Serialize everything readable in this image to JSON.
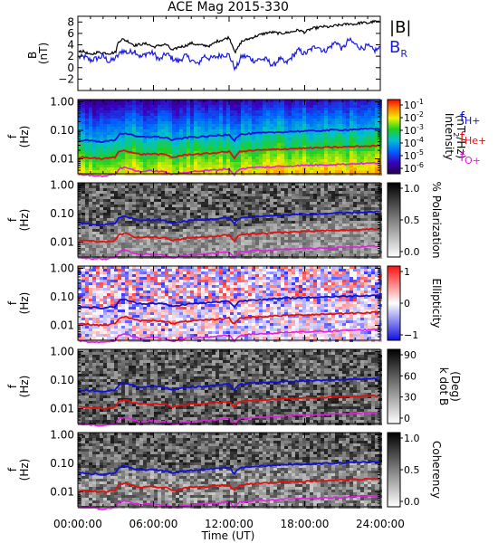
{
  "title": "ACE Mag 2015-330",
  "legend": {
    "b_label": "|B|",
    "br_label": "B",
    "br_sub": "R",
    "fh_label": "f",
    "fh_sub": "H+",
    "fhe_label": "f",
    "fhe_sub": "He+",
    "fo_label": "f",
    "fo_sub": "O+"
  },
  "x_axis": {
    "label": "Time (UT)",
    "ticks": [
      "00:00:00",
      "06:00:00",
      "12:00:00",
      "18:00:00",
      "24:00:00"
    ],
    "tick_hours": [
      0,
      6,
      12,
      18,
      24
    ]
  },
  "colors": {
    "b_total": "#000000",
    "b_r": "#1c1ce0",
    "f_h": "#1010d8",
    "f_he": "#e01010",
    "f_o": "#e020e0"
  },
  "chart_data": [
    {
      "type": "line",
      "panel": "magnetic_field",
      "ylabel_top": "B",
      "ylabel_bottom": "(nT)",
      "ylim": [
        -4,
        9
      ],
      "yticks": [
        "8",
        "6",
        "4",
        "2",
        "0",
        "−2"
      ],
      "ytick_values": [
        8,
        6,
        4,
        2,
        0,
        -2
      ],
      "x": [
        0,
        0.5,
        1,
        1.5,
        2,
        2.5,
        3,
        3.2,
        3.5,
        4,
        4.5,
        5,
        5.5,
        6,
        6.5,
        7,
        7.5,
        8,
        8.5,
        9,
        9.5,
        10,
        10.5,
        11,
        11.5,
        12,
        12.5,
        13,
        13.5,
        14,
        14.5,
        15,
        15.5,
        16,
        16.5,
        17,
        17.5,
        18,
        18.5,
        19,
        19.5,
        20,
        20.5,
        21,
        21.5,
        22,
        22.5,
        23,
        23.5,
        24
      ],
      "series": [
        {
          "name": "|B|",
          "values": [
            3.0,
            2.8,
            2.2,
            2.7,
            2.6,
            2.5,
            2.7,
            4.5,
            5.0,
            4.6,
            3.9,
            4.1,
            4.2,
            3.6,
            3.9,
            4.1,
            3.0,
            3.6,
            3.8,
            4.3,
            4.0,
            3.9,
            3.8,
            4.6,
            4.9,
            5.3,
            2.7,
            4.6,
            5.0,
            5.4,
            5.8,
            6.1,
            6.2,
            6.0,
            6.1,
            6.3,
            6.6,
            6.2,
            6.8,
            7.0,
            7.2,
            7.1,
            7.4,
            7.5,
            7.7,
            7.6,
            7.9,
            7.8,
            8.1,
            8.0
          ]
        },
        {
          "name": "B",
          "values": [
            1.8,
            1.9,
            1.3,
            1.6,
            2.0,
            1.0,
            1.7,
            2.1,
            3.0,
            2.6,
            3.0,
            1.8,
            2.6,
            2.5,
            1.3,
            2.5,
            1.6,
            1.1,
            2.1,
            1.4,
            0.5,
            2.1,
            1.6,
            1.9,
            2.3,
            2.2,
            -0.3,
            2.0,
            1.9,
            1.2,
            1.5,
            1.4,
            0.3,
            1.6,
            0.7,
            1.9,
            3.1,
            2.4,
            3.2,
            3.9,
            2.8,
            3.6,
            4.6,
            3.2,
            4.9,
            4.1,
            3.4,
            3.8,
            3.0,
            3.4
          ]
        }
      ]
    },
    {
      "type": "heatmap",
      "panel": "power_spectral_density",
      "ylabel_top": "f",
      "ylabel_bottom": "(Hz)",
      "yscale": "log",
      "ylim": [
        0.003,
        1.2
      ],
      "yticks": [
        "1.00",
        "0.10",
        "0.01"
      ],
      "ytick_values": [
        1.0,
        0.1,
        0.01
      ],
      "colorbar_label": "Intensity",
      "colorbar_unit_pre": "(nT",
      "colorbar_unit_sup": "2",
      "colorbar_unit_post": "/Hz)",
      "colorbar_ticks": [
        "10",
        "10",
        "10",
        "10",
        "10",
        "10"
      ],
      "colorbar_exponents": [
        "-1",
        "-2",
        "-3",
        "-4",
        "-5",
        "-6"
      ],
      "colormap": "rainbow"
    },
    {
      "type": "heatmap",
      "panel": "polarization",
      "ylabel_top": "f",
      "ylabel_bottom": "(Hz)",
      "yscale": "log",
      "ylim": [
        0.003,
        1.2
      ],
      "yticks": [
        "1.00",
        "0.10",
        "0.01"
      ],
      "ytick_values": [
        1.0,
        0.1,
        0.01
      ],
      "colorbar_label": "% Polarization",
      "colorbar_ticks": [
        "1.0",
        "0.5",
        "0.0"
      ],
      "colormap": "gray"
    },
    {
      "type": "heatmap",
      "panel": "ellipticity",
      "ylabel_top": "f",
      "ylabel_bottom": "(Hz)",
      "yscale": "log",
      "ylim": [
        0.003,
        1.2
      ],
      "yticks": [
        "1.00",
        "0.10",
        "0.01"
      ],
      "ytick_values": [
        1.0,
        0.1,
        0.01
      ],
      "colorbar_label": "Ellipticity",
      "colorbar_ticks": [
        "1",
        "0",
        "−1"
      ],
      "colormap": "blue-white-red"
    },
    {
      "type": "heatmap",
      "panel": "wave_normal_angle",
      "ylabel_top": "f",
      "ylabel_bottom": "(Hz)",
      "yscale": "log",
      "ylim": [
        0.003,
        1.2
      ],
      "yticks": [
        "1.00",
        "0.10",
        "0.01"
      ],
      "ytick_values": [
        1.0,
        0.1,
        0.01
      ],
      "colorbar_label": "k dot B",
      "colorbar_label2": "(Deg)",
      "colorbar_ticks": [
        "90",
        "60",
        "30",
        "0"
      ],
      "colormap": "gray"
    },
    {
      "type": "heatmap",
      "panel": "coherency",
      "ylabel_top": "f",
      "ylabel_bottom": "(Hz)",
      "yscale": "log",
      "ylim": [
        0.003,
        1.2
      ],
      "yticks": [
        "1.00",
        "0.10",
        "0.01"
      ],
      "ytick_values": [
        1.0,
        0.1,
        0.01
      ],
      "colorbar_label": "Coherency",
      "colorbar_ticks": [
        "1.0",
        "0.5",
        "0.0"
      ],
      "colormap": "gray"
    }
  ],
  "gyrofrequencies": {
    "x": [
      0,
      1,
      2,
      3,
      3.3,
      3.8,
      4.5,
      5,
      6,
      7,
      7.5,
      8,
      9,
      10,
      11,
      12,
      12.4,
      12.8,
      13.5,
      14,
      15,
      16,
      17,
      18,
      19,
      20,
      21,
      22,
      23,
      24
    ],
    "f_h": [
      0.046,
      0.043,
      0.04,
      0.046,
      0.075,
      0.08,
      0.062,
      0.058,
      0.06,
      0.055,
      0.045,
      0.05,
      0.058,
      0.06,
      0.065,
      0.072,
      0.042,
      0.07,
      0.075,
      0.079,
      0.082,
      0.087,
      0.091,
      0.094,
      0.097,
      0.101,
      0.104,
      0.108,
      0.112,
      0.115
    ],
    "f_he": [
      0.0115,
      0.0108,
      0.01,
      0.0115,
      0.0188,
      0.02,
      0.0155,
      0.0145,
      0.015,
      0.0138,
      0.0112,
      0.0125,
      0.0145,
      0.015,
      0.0163,
      0.018,
      0.0105,
      0.0175,
      0.0188,
      0.0198,
      0.0205,
      0.0218,
      0.0228,
      0.0235,
      0.0243,
      0.0253,
      0.026,
      0.027,
      0.028,
      0.0288
    ],
    "f_o": [
      0.0029,
      0.0027,
      0.0025,
      0.0029,
      0.0047,
      0.005,
      0.0039,
      0.0036,
      0.0038,
      0.0034,
      0.0028,
      0.0031,
      0.0036,
      0.0038,
      0.0041,
      0.0045,
      0.0026,
      0.0044,
      0.0047,
      0.005,
      0.0051,
      0.0054,
      0.0057,
      0.0059,
      0.0061,
      0.0063,
      0.0065,
      0.0068,
      0.007,
      0.0072
    ]
  }
}
